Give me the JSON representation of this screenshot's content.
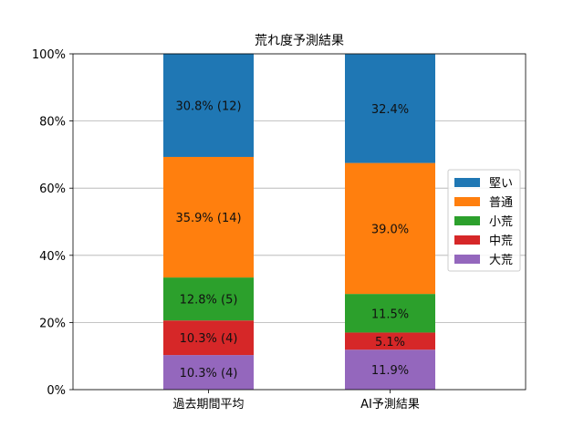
{
  "chart_data": {
    "type": "bar",
    "stacked": true,
    "title": "荒れ度予測結果",
    "xlabel": "",
    "ylabel": "",
    "categories": [
      "過去期間平均",
      "AI予測結果"
    ],
    "ylim": [
      0,
      100
    ],
    "yticks": [
      0,
      20,
      40,
      60,
      80,
      100
    ],
    "ytick_labels": [
      "0%",
      "20%",
      "40%",
      "60%",
      "80%",
      "100%"
    ],
    "grid": "horizontal",
    "legend_position": "center-right",
    "series": [
      {
        "name": "大荒",
        "color": "#9467bd",
        "values": [
          10.3,
          11.9
        ],
        "labels": [
          "10.3% (4)",
          "11.9%"
        ]
      },
      {
        "name": "中荒",
        "color": "#d62728",
        "values": [
          10.3,
          5.1
        ],
        "labels": [
          "10.3% (4)",
          "5.1%"
        ]
      },
      {
        "name": "小荒",
        "color": "#2ca02c",
        "values": [
          12.8,
          11.5
        ],
        "labels": [
          "12.8% (5)",
          "11.5%"
        ]
      },
      {
        "name": "普通",
        "color": "#ff7f0e",
        "values": [
          35.9,
          39.0
        ],
        "labels": [
          "35.9% (14)",
          "39.0%"
        ]
      },
      {
        "name": "堅い",
        "color": "#1f77b4",
        "values": [
          30.8,
          32.4
        ],
        "labels": [
          "30.8% (12)",
          "32.4%"
        ]
      }
    ],
    "legend_order": [
      "堅い",
      "普通",
      "小荒",
      "中荒",
      "大荒"
    ]
  }
}
